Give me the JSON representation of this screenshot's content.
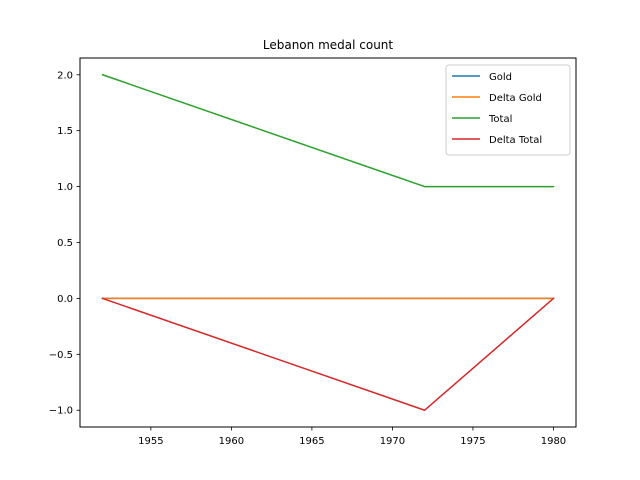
{
  "chart_data": {
    "type": "line",
    "title": "Lebanon medal count",
    "xlabel": "",
    "ylabel": "",
    "x": [
      1952,
      1972,
      1980
    ],
    "series": [
      {
        "name": "Gold",
        "values": [
          0,
          0,
          0
        ],
        "color": "#1f77b4"
      },
      {
        "name": "Delta Gold",
        "values": [
          0,
          0,
          0
        ],
        "color": "#ff7f0e"
      },
      {
        "name": "Total",
        "values": [
          2,
          1,
          1
        ],
        "color": "#2ca02c"
      },
      {
        "name": "Delta Total",
        "values": [
          0,
          -1,
          0
        ],
        "color": "#d62728"
      }
    ],
    "xlim": [
      1950.6,
      1981.4
    ],
    "ylim": [
      -1.15,
      2.15
    ],
    "xticks": [
      1955,
      1960,
      1965,
      1970,
      1975,
      1980
    ],
    "xtick_labels": [
      "1955",
      "1960",
      "1965",
      "1970",
      "1975",
      "1980"
    ],
    "yticks": [
      -1.0,
      -0.5,
      0.0,
      0.5,
      1.0,
      1.5,
      2.0
    ],
    "ytick_labels": [
      "−1.0",
      "−0.5",
      "0.0",
      "0.5",
      "1.0",
      "1.5",
      "2.0"
    ],
    "grid": false,
    "legend_position": "upper right"
  }
}
